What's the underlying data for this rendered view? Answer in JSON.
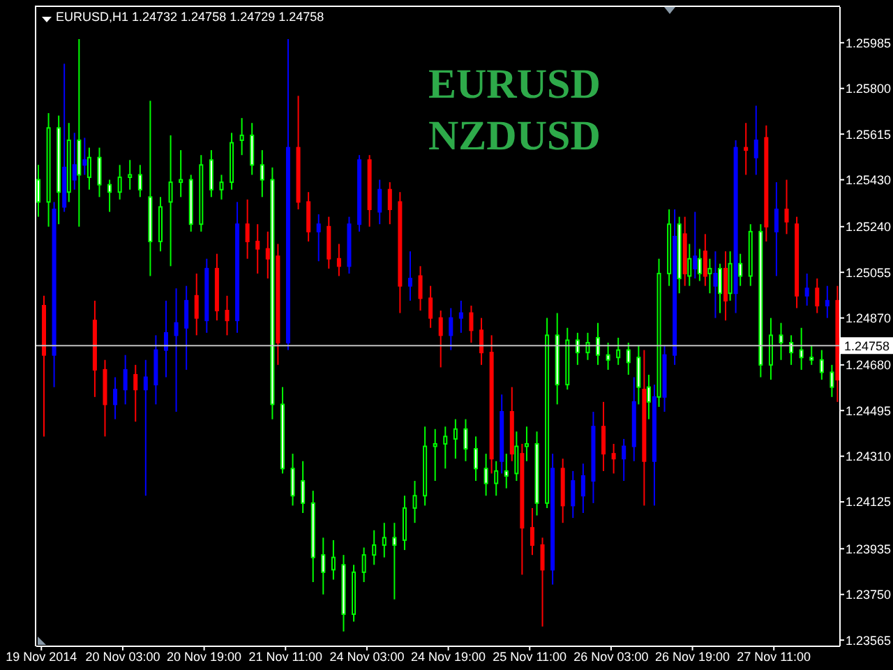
{
  "chart_data": {
    "type": "candlestick",
    "title": "EURUSD,H1 1.24732 1.24758 1.24729 1.24758",
    "annotations": [
      "EURUSD",
      "NZDUSD"
    ],
    "categories": [
      "19 Nov 2014",
      null,
      null,
      null,
      null,
      null,
      null,
      null,
      "20 Nov 03:00",
      null,
      null,
      null,
      null,
      null,
      null,
      null,
      "20 Nov 19:00",
      null,
      null,
      null,
      null,
      null,
      null,
      null,
      "21 Nov 11:00",
      null,
      null,
      null,
      null,
      null,
      null,
      null,
      "24 Nov 03:00",
      null,
      null,
      null,
      null,
      null,
      null,
      null,
      "24 Nov 19:00",
      null,
      null,
      null,
      null,
      null,
      null,
      null,
      "25 Nov 11:00",
      null,
      null,
      null,
      null,
      null,
      null,
      null,
      "26 Nov 03:00",
      null,
      null,
      null,
      null,
      null,
      null,
      null,
      "26 Nov 19:00",
      null,
      null,
      null,
      null,
      null,
      null,
      null,
      "27 Nov 11:00",
      null,
      null,
      null,
      null,
      null,
      null
    ],
    "ylim": [
      1.2354,
      1.2613
    ],
    "yticks": [
      1.25985,
      {
        "value": 1.258,
        "label": "1.25800"
      },
      1.25615,
      {
        "value": 1.2543,
        "label": "1.25430"
      },
      {
        "value": 1.2524,
        "label": "1.25240"
      },
      1.25055,
      {
        "value": 1.2487,
        "label": "1.24870"
      },
      {
        "value": 1.2468,
        "label": "1.24680"
      },
      1.24495,
      {
        "value": 1.2431,
        "label": "1.24310"
      },
      1.24125,
      1.23935,
      {
        "value": 1.2375,
        "label": "1.23750"
      },
      1.23565
    ],
    "ref_lines": [
      {
        "axis": "y",
        "value": 1.24758,
        "label": "1.24758",
        "color": "#c0c0c0"
      }
    ],
    "series": [
      {
        "color": "#00ff00",
        "colors": [
          "#ffffff",
          "#000000",
          "#ffffff",
          "#000000",
          "#ffffff",
          "#000000",
          "#ffffff",
          "#ffffff",
          "#000000",
          "#000000",
          "#ffffff",
          "#ffffff",
          "#000000",
          "#000000",
          "#000000",
          "#ffffff",
          "#000000",
          "#ffffff",
          "#000000",
          "#000000",
          "#000000",
          "#ffffff",
          "#ffffff",
          "#ffffff",
          "#ffffff",
          "#ffffff",
          "#ffffff",
          "#ffffff",
          "#ffffff",
          "#000000",
          "#ffffff",
          "#000000",
          "#000000",
          "#000000",
          "#000000",
          "#ffffff",
          "#000000",
          "#000000",
          "#000000",
          "#000000",
          "#000000",
          "#000000",
          "#ffffff",
          "#ffffff",
          "#ffffff",
          "#000000",
          "#ffffff",
          "#000000",
          "#000000",
          "#ffffff",
          "#000000",
          "#ffffff",
          "#000000",
          "#ffffff",
          "#000000",
          "#ffffff",
          "#ffffff",
          "#000000",
          "#ffffff",
          "#ffffff",
          "#ffffff",
          "#000000",
          "#000000",
          "#ffffff",
          "#000000",
          "#ffffff",
          "#000000",
          "#ffffff",
          "#000000",
          "#ffffff",
          "#000000",
          "#ffffff",
          "#000000",
          "#ffffff",
          "#ffffff",
          "#ffffff",
          "#ffffff",
          "#ffffff",
          "#ffffff"
        ],
        "ohlc": [
          [
            1.2543,
            1.2549,
            1.2528,
            1.2534
          ],
          [
            1.2534,
            1.257,
            1.2524,
            1.2564
          ],
          [
            1.2564,
            1.2569,
            1.2525,
            1.2538
          ],
          [
            1.2538,
            1.2566,
            1.2534,
            1.2559
          ],
          [
            1.2559,
            1.26,
            1.2524,
            1.2545
          ],
          [
            1.2544,
            1.2556,
            1.2539,
            1.2552
          ],
          [
            1.2552,
            1.2556,
            1.2536,
            1.2541
          ],
          [
            1.2541,
            1.2543,
            1.253,
            1.2538
          ],
          [
            1.2538,
            1.2549,
            1.2535,
            1.2544
          ],
          [
            1.2544,
            1.2551,
            1.2539,
            1.2545
          ],
          [
            1.2545,
            1.2549,
            1.2536,
            1.2539
          ],
          [
            1.2536,
            1.2575,
            1.2504,
            1.2518
          ],
          [
            1.2518,
            1.2536,
            1.2514,
            1.2532
          ],
          [
            1.2534,
            1.2561,
            1.2508,
            1.2542
          ],
          [
            1.2542,
            1.2555,
            1.2536,
            1.2543
          ],
          [
            1.2543,
            1.2545,
            1.2522,
            1.2525
          ],
          [
            1.2525,
            1.2553,
            1.2522,
            1.2549
          ],
          [
            1.2551,
            1.2555,
            1.2536,
            1.2539
          ],
          [
            1.2539,
            1.2545,
            1.2535,
            1.2542
          ],
          [
            1.2542,
            1.2562,
            1.2539,
            1.2558
          ],
          [
            1.2559,
            1.2568,
            1.2553,
            1.2561
          ],
          [
            1.2561,
            1.2566,
            1.2545,
            1.2549
          ],
          [
            1.2549,
            1.2555,
            1.2536,
            1.2543
          ],
          [
            1.2543,
            1.2548,
            1.2446,
            1.2452
          ],
          [
            1.2452,
            1.2459,
            1.2424,
            1.2426
          ],
          [
            1.2426,
            1.2432,
            1.2411,
            1.2415
          ],
          [
            1.2421,
            1.2429,
            1.2408,
            1.2412
          ],
          [
            1.2412,
            1.2417,
            1.238,
            1.239
          ],
          [
            1.2391,
            1.2398,
            1.2375,
            1.2384
          ],
          [
            1.2385,
            1.2397,
            1.2381,
            1.239
          ],
          [
            1.2387,
            1.2391,
            1.236,
            1.2367
          ],
          [
            1.2367,
            1.2387,
            1.2364,
            1.2384
          ],
          [
            1.2384,
            1.2394,
            1.238,
            1.2391
          ],
          [
            1.2391,
            1.2401,
            1.2387,
            1.2395
          ],
          [
            1.2395,
            1.2404,
            1.239,
            1.2398
          ],
          [
            1.2398,
            1.2404,
            1.2373,
            1.2395
          ],
          [
            1.2397,
            1.2415,
            1.2393,
            1.241
          ],
          [
            1.241,
            1.2421,
            1.2404,
            1.2415
          ],
          [
            1.2415,
            1.2443,
            1.2411,
            1.2435
          ],
          [
            1.2435,
            1.2442,
            1.2421,
            1.2436
          ],
          [
            1.2436,
            1.2443,
            1.2426,
            1.2439
          ],
          [
            1.2438,
            1.2446,
            1.243,
            1.2442
          ],
          [
            1.2442,
            1.2446,
            1.2429,
            1.2434
          ],
          [
            1.2434,
            1.2439,
            1.2421,
            1.2426
          ],
          [
            1.2426,
            1.2432,
            1.2415,
            1.242
          ],
          [
            1.242,
            1.2429,
            1.2415,
            1.2425
          ],
          [
            1.2425,
            1.2432,
            1.2418,
            1.2423
          ],
          [
            1.2424,
            1.2441,
            1.2421,
            1.2435
          ],
          [
            1.2435,
            1.2443,
            1.2429,
            1.2436
          ],
          [
            1.2436,
            1.2441,
            1.2407,
            1.2412
          ],
          [
            1.2412,
            1.2487,
            1.241,
            1.248
          ],
          [
            1.248,
            1.2489,
            1.2452,
            1.246
          ],
          [
            1.246,
            1.2483,
            1.2458,
            1.2478
          ],
          [
            1.2478,
            1.2481,
            1.2468,
            1.2473
          ],
          [
            1.2473,
            1.2481,
            1.247,
            1.2477
          ],
          [
            1.2479,
            1.2485,
            1.2468,
            1.2472
          ],
          [
            1.2472,
            1.2477,
            1.2466,
            1.247
          ],
          [
            1.2471,
            1.2479,
            1.2468,
            1.2474
          ],
          [
            1.2474,
            1.2477,
            1.2464,
            1.2469
          ],
          [
            1.2471,
            1.2476,
            1.2452,
            1.2459
          ],
          [
            1.2459,
            1.2464,
            1.2446,
            1.2453
          ],
          [
            1.2455,
            1.2511,
            1.2451,
            1.2505
          ],
          [
            1.2505,
            1.2531,
            1.25,
            1.2525
          ],
          [
            1.2525,
            1.2528,
            1.2497,
            1.2503
          ],
          [
            1.2504,
            1.2517,
            1.25,
            1.2511
          ],
          [
            1.2511,
            1.2515,
            1.2502,
            1.2505
          ],
          [
            1.2505,
            1.2511,
            1.2497,
            1.2507
          ],
          [
            1.2507,
            1.2509,
            1.2489,
            1.2497
          ],
          [
            1.2497,
            1.2514,
            1.2494,
            1.2509
          ],
          [
            1.2509,
            1.2513,
            1.25,
            1.2504
          ],
          [
            1.2504,
            1.2525,
            1.25,
            1.2522
          ],
          [
            1.2522,
            1.2525,
            1.2463,
            1.2468
          ],
          [
            1.2468,
            1.2487,
            1.2462,
            1.248
          ],
          [
            1.248,
            1.2485,
            1.247,
            1.2477
          ],
          [
            1.2477,
            1.248,
            1.2468,
            1.2473
          ],
          [
            1.2474,
            1.2483,
            1.2466,
            1.2471
          ],
          [
            1.2471,
            1.2476,
            1.2468,
            1.247
          ],
          [
            1.247,
            1.2474,
            1.2462,
            1.2465
          ],
          [
            1.2465,
            1.2468,
            1.2455,
            1.2459
          ]
        ]
      },
      {
        "colors": [
          "#ff0000",
          "#0000ff",
          "#0000ff",
          "#0000ff",
          "#0000ff",
          "#ff0000",
          "#ff0000",
          "#0000ff",
          "#0000ff",
          "#ff0000",
          "#0000ff",
          "#0000ff",
          "#0000ff",
          "#0000ff",
          "#0000ff",
          "#ff0000",
          "#0000ff",
          "#ff0000",
          "#ff0000",
          "#0000ff",
          "#ff0000",
          "#ff0000",
          "#ff0000",
          "#ff0000",
          "#0000ff",
          "#ff0000",
          "#ff0000",
          "#0000ff",
          "#ff0000",
          "#ff0000",
          "#0000ff",
          "#0000ff",
          "#ff0000",
          "#0000ff",
          "#ff0000",
          "#ff0000",
          "#0000ff",
          "#ff0000",
          "#ff0000",
          "#ff0000",
          "#0000ff",
          "#0000ff",
          "#ff0000",
          "#ff0000",
          "#ff0000",
          "#0000ff",
          "#ff0000",
          "#ff0000",
          "#ff0000",
          "#ff0000",
          "#0000ff",
          "#ff0000",
          "#0000ff",
          "#0000ff",
          "#0000ff",
          "#ff0000",
          "#ff0000",
          "#0000ff",
          "#0000ff",
          "#ff0000",
          "#0000ff",
          "#0000ff",
          "#0000ff",
          "#ff0000",
          "#0000ff",
          "#ff0000",
          "#0000ff",
          "#ff0000",
          "#0000ff",
          "#ff0000",
          "#0000ff",
          "#ff0000",
          "#0000ff",
          "#ff0000",
          "#ff0000",
          "#0000ff",
          "#ff0000",
          "#0000ff",
          "#ff0000"
        ],
        "ohlc": [
          [
            1.2492,
            1.2496,
            1.2439,
            1.2472
          ],
          [
            1.2472,
            1.2534,
            1.2459,
            1.2531
          ],
          [
            1.2532,
            1.259,
            1.253,
            1.2548
          ],
          [
            1.2543,
            1.2562,
            1.2539,
            1.2549
          ],
          [
            1.2549,
            1.256,
            1.2545,
            1.2551
          ],
          [
            1.2486,
            1.2494,
            1.2455,
            1.2466
          ],
          [
            1.2466,
            1.247,
            1.2439,
            1.2452
          ],
          [
            1.2452,
            1.2463,
            1.2446,
            1.2458
          ],
          [
            1.2458,
            1.2472,
            1.2452,
            1.2466
          ],
          [
            1.2464,
            1.2468,
            1.2445,
            1.2458
          ],
          [
            1.2458,
            1.247,
            1.2415,
            1.2463
          ],
          [
            1.246,
            1.248,
            1.2452,
            1.2474
          ],
          [
            1.2474,
            1.2494,
            1.2463,
            1.2481
          ],
          [
            1.248,
            1.2499,
            1.2449,
            1.2485
          ],
          [
            1.2483,
            1.25,
            1.2466,
            1.2494
          ],
          [
            1.2496,
            1.2505,
            1.248,
            1.2487
          ],
          [
            1.2486,
            1.2511,
            1.2481,
            1.2507
          ],
          [
            1.2507,
            1.2513,
            1.2486,
            1.249
          ],
          [
            1.249,
            1.2496,
            1.248,
            1.2486
          ],
          [
            1.2486,
            1.2534,
            1.2481,
            1.2525
          ],
          [
            1.2525,
            1.2535,
            1.2511,
            1.2518
          ],
          [
            1.2518,
            1.2525,
            1.2505,
            1.2515
          ],
          [
            1.2515,
            1.2522,
            1.2503,
            1.2511
          ],
          [
            1.2512,
            1.2517,
            1.2468,
            1.2477
          ],
          [
            1.2477,
            1.26,
            1.2474,
            1.2556
          ],
          [
            1.2556,
            1.2577,
            1.2531,
            1.2534
          ],
          [
            1.2534,
            1.2538,
            1.2518,
            1.2522
          ],
          [
            1.2522,
            1.2529,
            1.251,
            1.2525
          ],
          [
            1.2524,
            1.2528,
            1.2507,
            1.2511
          ],
          [
            1.2511,
            1.2517,
            1.2504,
            1.2508
          ],
          [
            1.2508,
            1.2528,
            1.2505,
            1.2525
          ],
          [
            1.2525,
            1.2553,
            1.2522,
            1.2551
          ],
          [
            1.2551,
            1.2553,
            1.2524,
            1.2531
          ],
          [
            1.253,
            1.2543,
            1.2525,
            1.2539
          ],
          [
            1.2539,
            1.2542,
            1.2525,
            1.2531
          ],
          [
            1.2534,
            1.2538,
            1.2489,
            1.25
          ],
          [
            1.25,
            1.2514,
            1.2494,
            1.2503
          ],
          [
            1.2504,
            1.2508,
            1.249,
            1.2495
          ],
          [
            1.2495,
            1.25,
            1.2483,
            1.2487
          ],
          [
            1.2487,
            1.249,
            1.2467,
            1.248
          ],
          [
            1.248,
            1.2491,
            1.2474,
            1.2487
          ],
          [
            1.2487,
            1.2494,
            1.2481,
            1.2489
          ],
          [
            1.2489,
            1.2492,
            1.2477,
            1.2482
          ],
          [
            1.2482,
            1.2487,
            1.2468,
            1.2473
          ],
          [
            1.2473,
            1.248,
            1.2424,
            1.243
          ],
          [
            1.2429,
            1.2456,
            1.2424,
            1.2449
          ],
          [
            1.2449,
            1.2459,
            1.2429,
            1.2432
          ],
          [
            1.2432,
            1.2436,
            1.2383,
            1.2402
          ],
          [
            1.2402,
            1.241,
            1.2391,
            1.2395
          ],
          [
            1.2395,
            1.2398,
            1.2362,
            1.2385
          ],
          [
            1.2385,
            1.2432,
            1.2379,
            1.2426
          ],
          [
            1.2426,
            1.243,
            1.2404,
            1.2411
          ],
          [
            1.2411,
            1.2425,
            1.2406,
            1.2421
          ],
          [
            1.2415,
            1.2428,
            1.2408,
            1.2423
          ],
          [
            1.2421,
            1.2449,
            1.2412,
            1.2443
          ],
          [
            1.2443,
            1.2453,
            1.2425,
            1.2432
          ],
          [
            1.2432,
            1.2436,
            1.2424,
            1.243
          ],
          [
            1.243,
            1.2438,
            1.2421,
            1.2435
          ],
          [
            1.2435,
            1.2463,
            1.2429,
            1.2453
          ],
          [
            1.2458,
            1.2474,
            1.2411,
            1.2429
          ],
          [
            1.2429,
            1.246,
            1.2411,
            1.2455
          ],
          [
            1.2455,
            1.2476,
            1.2449,
            1.2472
          ],
          [
            1.2472,
            1.2531,
            1.2468,
            1.252
          ],
          [
            1.2521,
            1.2528,
            1.25,
            1.2505
          ],
          [
            1.2507,
            1.253,
            1.2503,
            1.2512
          ],
          [
            1.2514,
            1.2521,
            1.25,
            1.2504
          ],
          [
            1.25,
            1.2514,
            1.2487,
            1.2505
          ],
          [
            1.2507,
            1.2514,
            1.2486,
            1.2494
          ],
          [
            1.2497,
            1.2559,
            1.2489,
            1.2556
          ],
          [
            1.2556,
            1.2566,
            1.2545,
            1.2555
          ],
          [
            1.2552,
            1.2573,
            1.2545,
            1.2559
          ],
          [
            1.256,
            1.2565,
            1.2518,
            1.2524
          ],
          [
            1.2522,
            1.2542,
            1.2504,
            1.2531
          ],
          [
            1.2531,
            1.2543,
            1.2521,
            1.2526
          ],
          [
            1.2525,
            1.2528,
            1.2491,
            1.2496
          ],
          [
            1.2496,
            1.2505,
            1.2492,
            1.2499
          ],
          [
            1.2499,
            1.2503,
            1.2489,
            1.2492
          ],
          [
            1.2492,
            1.25,
            1.2487,
            1.2494
          ],
          [
            1.2494,
            1.25,
            1.2453,
            1.2462
          ]
        ]
      }
    ]
  }
}
